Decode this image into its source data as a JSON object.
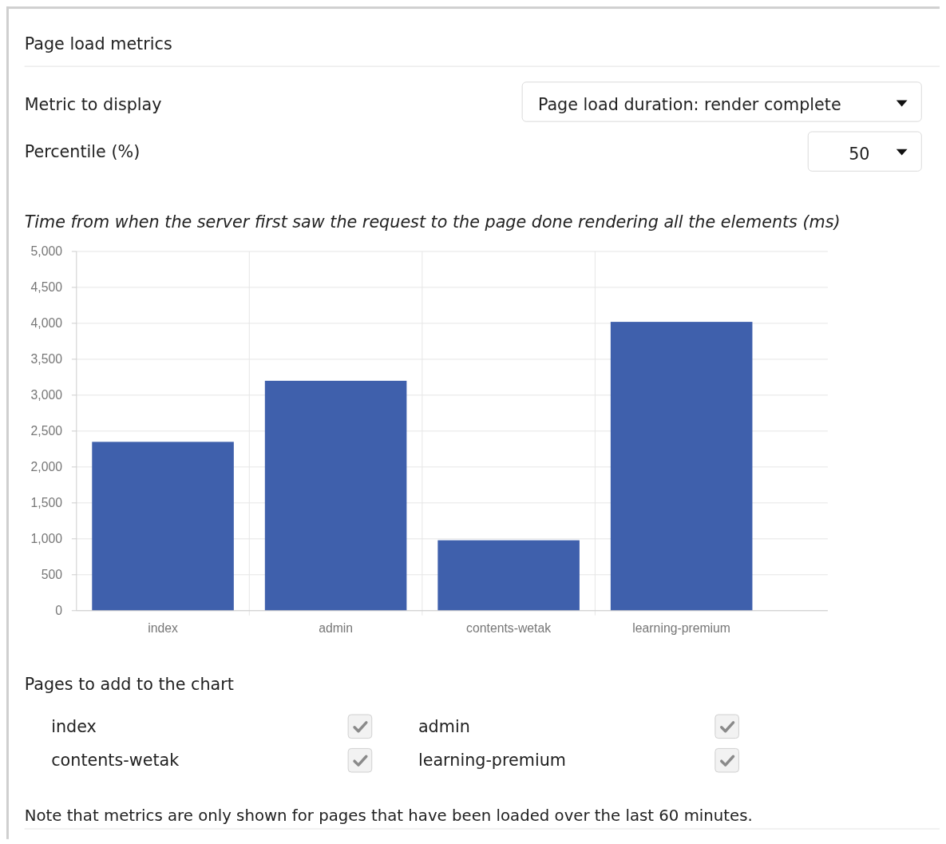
{
  "chart_data": {
    "type": "bar",
    "title": "Page load metrics",
    "subtitle": "Time from when the server first saw the request to the page done rendering all the elements (ms)",
    "categories": [
      "index",
      "admin",
      "contents-wetak",
      "learning-premium"
    ],
    "values": [
      2350,
      3200,
      980,
      4020
    ],
    "color": "#3f60ac",
    "ylim": [
      0,
      5000
    ],
    "yticks": [
      {
        "value": 0,
        "label": "0"
      },
      {
        "value": 500,
        "label": "500"
      },
      {
        "value": 1000,
        "label": "1,000"
      },
      {
        "value": 1500,
        "label": "1,500"
      },
      {
        "value": 2000,
        "label": "2,000"
      },
      {
        "value": 2500,
        "label": "2,500"
      },
      {
        "value": 3000,
        "label": "3,000"
      },
      {
        "value": 3500,
        "label": "3,500"
      },
      {
        "value": 4000,
        "label": "4,000"
      },
      {
        "value": 4500,
        "label": "4,500"
      },
      {
        "value": 5000,
        "label": "5,000"
      }
    ],
    "grid": true,
    "annotations": [
      "Metric to display",
      "Page load duration: render complete",
      "Percentile (%)",
      "50",
      "Pages to add to the chart",
      "Note that metrics are only shown for pages that have been loaded over the last 60 minutes."
    ]
  }
}
